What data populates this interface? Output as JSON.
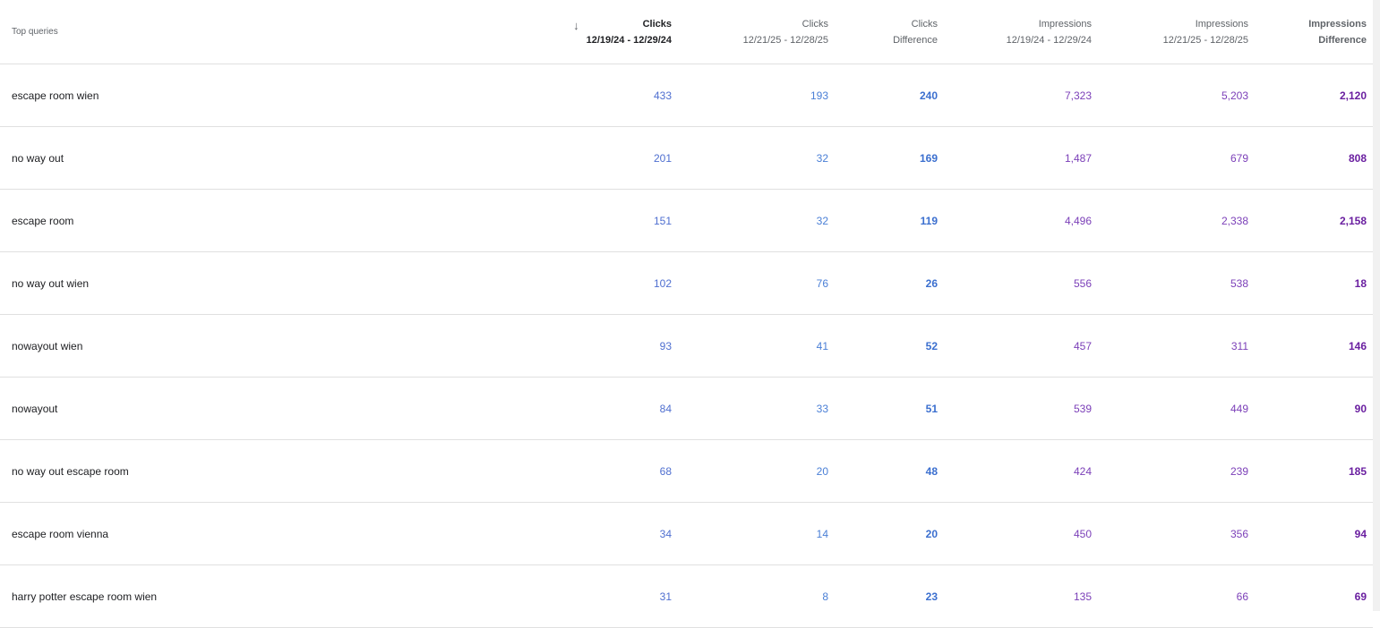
{
  "header": {
    "query": "Top queries",
    "sort_icon": "arrow-down-icon",
    "columns": [
      {
        "line1": "Clicks",
        "line2": "12/19/24 - 12/29/24"
      },
      {
        "line1": "Clicks",
        "line2": "12/21/25 - 12/28/25"
      },
      {
        "line1": "Clicks",
        "line2": "Difference"
      },
      {
        "line1": "Impressions",
        "line2": "12/19/24 - 12/29/24"
      },
      {
        "line1": "Impressions",
        "line2": "12/21/25 - 12/28/25"
      },
      {
        "line1": "Impressions",
        "line2": "Difference"
      }
    ]
  },
  "colors": {
    "clicks": "#4a7fd6",
    "clicks_diff": "#3b6fcf",
    "impressions": "#7b3fb8",
    "impressions_diff": "#6a1fa0"
  },
  "rows": [
    {
      "q": "escape room wien",
      "v": [
        "433",
        "193",
        "240",
        "7,323",
        "5,203",
        "2,120"
      ]
    },
    {
      "q": "no way out",
      "v": [
        "201",
        "32",
        "169",
        "1,487",
        "679",
        "808"
      ]
    },
    {
      "q": "escape room",
      "v": [
        "151",
        "32",
        "119",
        "4,496",
        "2,338",
        "2,158"
      ]
    },
    {
      "q": "no way out wien",
      "v": [
        "102",
        "76",
        "26",
        "556",
        "538",
        "18"
      ]
    },
    {
      "q": "nowayout wien",
      "v": [
        "93",
        "41",
        "52",
        "457",
        "311",
        "146"
      ]
    },
    {
      "q": "nowayout",
      "v": [
        "84",
        "33",
        "51",
        "539",
        "449",
        "90"
      ]
    },
    {
      "q": "no way out escape room",
      "v": [
        "68",
        "20",
        "48",
        "424",
        "239",
        "185"
      ]
    },
    {
      "q": "escape room vienna",
      "v": [
        "34",
        "14",
        "20",
        "450",
        "356",
        "94"
      ]
    },
    {
      "q": "harry potter escape room wien",
      "v": [
        "31",
        "8",
        "23",
        "135",
        "66",
        "69"
      ]
    }
  ]
}
